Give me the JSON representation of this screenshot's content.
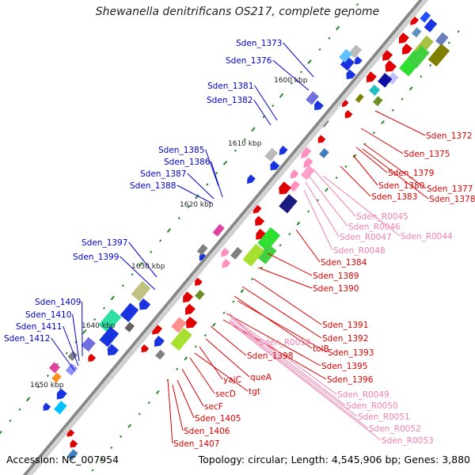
{
  "title": "Shewanella denitrificans OS217, complete genome",
  "accession_label": "Accession: NC_007954",
  "summary": "Topology: circular; Length: 4,545,906 bp; Genes: 3,880",
  "colors": {
    "backbone": "#888888",
    "outer_label": "#0000cc",
    "inner_label": "#dd0000",
    "rna_label": "#f080b0",
    "tick_dot": "#228822"
  },
  "kbp_ticks": [
    "1600 kbp",
    "1610 kbp",
    "1620 kbp",
    "1630 kbp",
    "1640 kbp",
    "1650 kbp"
  ],
  "outer_labels": [
    "Sden_1373",
    "Sden_1376",
    "Sden_1381",
    "Sden_1382",
    "Sden_1385",
    "Sden_1386",
    "Sden_1387",
    "Sden_1388",
    "Sden_1397",
    "Sden_1399",
    "Sden_1409",
    "Sden_1410",
    "Sden_1411",
    "Sden_1412"
  ],
  "inner_labels": [
    "Sden_1372",
    "Sden_1375",
    "Sden_1379",
    "Sden_1377",
    "Sden_1380",
    "Sden_1378",
    "Sden_1383",
    "Sden_1384",
    "Sden_1389",
    "Sden_1390",
    "Sden_1391",
    "Sden_1392",
    "tolB",
    "Sden_1393",
    "Sden_1395",
    "Sden_1396",
    "Sden_1398",
    "queA",
    "yajC",
    "tgt",
    "secD",
    "secF",
    "Sden_1405",
    "Sden_1406",
    "Sden_1407"
  ],
  "rna_labels": [
    "Sden_R0045",
    "Sden_R0046",
    "Sden_R0047",
    "Sden_R0044",
    "Sden_R0048",
    "Sden_R0054",
    "Sden_R0049",
    "Sden_R0050",
    "Sden_R0051",
    "Sden_R0052",
    "Sden_R0053"
  ]
}
